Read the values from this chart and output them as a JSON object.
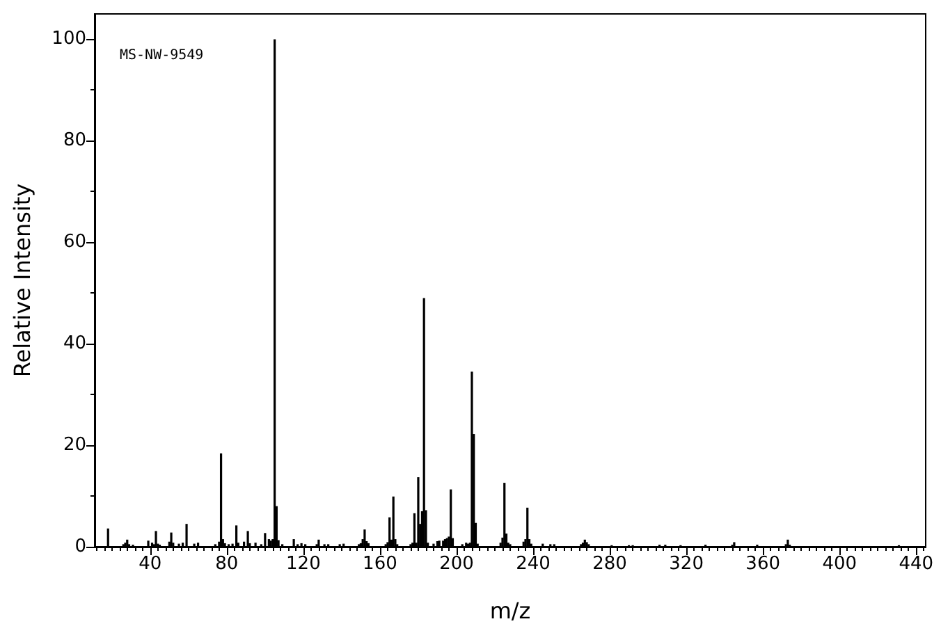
{
  "chart_data": {
    "type": "bar",
    "xlabel": "m/z",
    "ylabel": "Relative Intensity",
    "annotations": [
      "MS-NW-9549"
    ],
    "color": "#000000",
    "grid": false,
    "x": [
      18,
      26,
      27,
      28,
      29,
      31,
      39,
      41,
      42,
      43,
      44,
      45,
      50,
      51,
      52,
      55,
      57,
      59,
      63,
      65,
      74,
      76,
      77,
      78,
      79,
      81,
      83,
      85,
      86,
      89,
      91,
      92,
      95,
      98,
      100,
      102,
      103,
      104,
      105,
      106,
      107,
      109,
      115,
      117,
      119,
      121,
      127,
      128,
      131,
      133,
      139,
      141,
      149,
      150,
      151,
      152,
      153,
      154,
      163,
      164,
      165,
      166,
      167,
      168,
      169,
      176,
      177,
      178,
      179,
      180,
      181,
      182,
      183,
      184,
      185,
      188,
      190,
      191,
      193,
      194,
      195,
      196,
      197,
      198,
      203,
      205,
      206,
      207,
      208,
      209,
      210,
      211,
      223,
      224,
      225,
      226,
      227,
      228,
      235,
      236,
      237,
      238,
      239,
      245,
      249,
      251,
      265,
      266,
      267,
      268,
      269,
      281,
      290,
      292,
      306,
      309,
      317,
      330,
      344,
      345,
      357,
      372,
      373,
      374,
      431
    ],
    "values": [
      3.6,
      0.5,
      0.8,
      1.4,
      0.5,
      0.4,
      1.2,
      0.8,
      0.5,
      3.1,
      0.6,
      0.4,
      1.0,
      2.8,
      0.8,
      0.6,
      0.8,
      4.5,
      0.6,
      0.8,
      0.5,
      1.0,
      18.4,
      1.5,
      0.7,
      0.5,
      0.6,
      4.2,
      0.8,
      1.0,
      3.1,
      0.7,
      0.8,
      0.5,
      2.7,
      1.5,
      1.2,
      1.5,
      100,
      8.0,
      1.3,
      0.5,
      1.5,
      0.5,
      0.7,
      0.5,
      0.5,
      1.4,
      0.5,
      0.5,
      0.5,
      0.6,
      0.5,
      0.7,
      1.5,
      3.4,
      1.1,
      0.7,
      0.5,
      0.9,
      5.8,
      1.4,
      9.9,
      1.5,
      0.5,
      0.5,
      0.8,
      6.6,
      0.8,
      13.7,
      4.5,
      7.0,
      49,
      7.2,
      0.8,
      0.6,
      1.1,
      1.2,
      1.2,
      1.5,
      1.7,
      2.0,
      11.3,
      1.7,
      0.5,
      0.8,
      0.6,
      0.8,
      34.5,
      22.2,
      4.7,
      0.6,
      0.8,
      1.8,
      12.6,
      2.6,
      0.8,
      0.5,
      1.0,
      1.5,
      7.7,
      1.5,
      0.6,
      0.6,
      0.5,
      0.5,
      0.5,
      0.8,
      1.4,
      0.9,
      0.5,
      0.3,
      0.3,
      0.3,
      0.4,
      0.4,
      0.3,
      0.4,
      0.4,
      0.9,
      0.4,
      0.5,
      1.4,
      0.4,
      0.3
    ],
    "xlim": [
      11,
      445
    ],
    "ylim": [
      0,
      105
    ],
    "xticks": [
      {
        "value": 12,
        "label": null
      },
      {
        "value": 16,
        "label": null
      },
      {
        "value": 20,
        "label": null
      },
      {
        "value": 24,
        "label": null
      },
      {
        "value": 28,
        "label": null
      },
      {
        "value": 32,
        "label": null
      },
      {
        "value": 36,
        "label": null
      },
      40,
      {
        "value": 44,
        "label": null
      },
      {
        "value": 48,
        "label": null
      },
      {
        "value": 52,
        "label": null
      },
      {
        "value": 56,
        "label": null
      },
      {
        "value": 60,
        "label": null
      },
      {
        "value": 64,
        "label": null
      },
      {
        "value": 68,
        "label": null
      },
      {
        "value": 72,
        "label": null
      },
      {
        "value": 76,
        "label": null
      },
      80,
      {
        "value": 84,
        "label": null
      },
      {
        "value": 88,
        "label": null
      },
      {
        "value": 92,
        "label": null
      },
      {
        "value": 96,
        "label": null
      },
      {
        "value": 100,
        "label": null
      },
      {
        "value": 104,
        "label": null
      },
      {
        "value": 108,
        "label": null
      },
      {
        "value": 112,
        "label": null
      },
      {
        "value": 116,
        "label": null
      },
      120,
      {
        "value": 124,
        "label": null
      },
      {
        "value": 128,
        "label": null
      },
      {
        "value": 132,
        "label": null
      },
      {
        "value": 136,
        "label": null
      },
      {
        "value": 140,
        "label": null
      },
      {
        "value": 144,
        "label": null
      },
      {
        "value": 148,
        "label": null
      },
      {
        "value": 152,
        "label": null
      },
      {
        "value": 156,
        "label": null
      },
      160,
      {
        "value": 164,
        "label": null
      },
      {
        "value": 168,
        "label": null
      },
      {
        "value": 172,
        "label": null
      },
      {
        "value": 176,
        "label": null
      },
      {
        "value": 180,
        "label": null
      },
      {
        "value": 184,
        "label": null
      },
      {
        "value": 188,
        "label": null
      },
      {
        "value": 192,
        "label": null
      },
      {
        "value": 196,
        "label": null
      },
      200,
      {
        "value": 204,
        "label": null
      },
      {
        "value": 208,
        "label": null
      },
      {
        "value": 212,
        "label": null
      },
      {
        "value": 216,
        "label": null
      },
      {
        "value": 220,
        "label": null
      },
      {
        "value": 224,
        "label": null
      },
      {
        "value": 228,
        "label": null
      },
      {
        "value": 232,
        "label": null
      },
      {
        "value": 236,
        "label": null
      },
      240,
      {
        "value": 244,
        "label": null
      },
      {
        "value": 248,
        "label": null
      },
      {
        "value": 252,
        "label": null
      },
      {
        "value": 256,
        "label": null
      },
      {
        "value": 260,
        "label": null
      },
      {
        "value": 264,
        "label": null
      },
      {
        "value": 268,
        "label": null
      },
      {
        "value": 272,
        "label": null
      },
      {
        "value": 276,
        "label": null
      },
      280,
      {
        "value": 284,
        "label": null
      },
      {
        "value": 288,
        "label": null
      },
      {
        "value": 292,
        "label": null
      },
      {
        "value": 296,
        "label": null
      },
      {
        "value": 300,
        "label": null
      },
      {
        "value": 304,
        "label": null
      },
      {
        "value": 308,
        "label": null
      },
      {
        "value": 312,
        "label": null
      },
      {
        "value": 316,
        "label": null
      },
      320,
      {
        "value": 324,
        "label": null
      },
      {
        "value": 328,
        "label": null
      },
      {
        "value": 332,
        "label": null
      },
      {
        "value": 336,
        "label": null
      },
      {
        "value": 340,
        "label": null
      },
      {
        "value": 344,
        "label": null
      },
      {
        "value": 348,
        "label": null
      },
      {
        "value": 352,
        "label": null
      },
      {
        "value": 356,
        "label": null
      },
      360,
      {
        "value": 364,
        "label": null
      },
      {
        "value": 368,
        "label": null
      },
      {
        "value": 372,
        "label": null
      },
      {
        "value": 376,
        "label": null
      },
      {
        "value": 380,
        "label": null
      },
      {
        "value": 384,
        "label": null
      },
      {
        "value": 388,
        "label": null
      },
      {
        "value": 392,
        "label": null
      },
      {
        "value": 396,
        "label": null
      },
      400,
      {
        "value": 404,
        "label": null
      },
      {
        "value": 408,
        "label": null
      },
      {
        "value": 412,
        "label": null
      },
      {
        "value": 416,
        "label": null
      },
      {
        "value": 420,
        "label": null
      },
      {
        "value": 424,
        "label": null
      },
      {
        "value": 428,
        "label": null
      },
      {
        "value": 432,
        "label": null
      },
      {
        "value": 436,
        "label": null
      },
      440,
      {
        "value": 444,
        "label": null
      }
    ],
    "yticks": [
      0,
      {
        "value": 10,
        "label": null
      },
      20,
      {
        "value": 30,
        "label": null
      },
      40,
      {
        "value": 50,
        "label": null
      },
      60,
      {
        "value": 70,
        "label": null
      },
      80,
      {
        "value": 90,
        "label": null
      },
      100
    ]
  }
}
